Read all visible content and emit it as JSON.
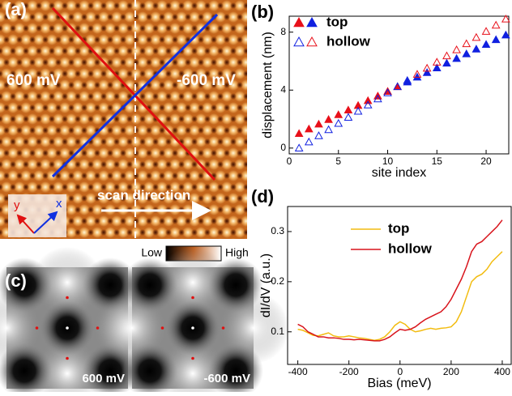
{
  "chart_data": [
    {
      "type": "scatter",
      "panel_label": "(b)",
      "x_label": "site index",
      "y_label": "displacement (nm)",
      "x": [
        1,
        2,
        3,
        4,
        5,
        6,
        7,
        8,
        9,
        10,
        11,
        12,
        13,
        14,
        15,
        16,
        17,
        18,
        19,
        20,
        21,
        22
      ],
      "series": [
        {
          "name": "top",
          "marker": "filled",
          "colors": [
            "#e8101a",
            "#e8101a",
            "#e8101a",
            "#e8101a",
            "#e8101a",
            "#e8101a",
            "#e8101a",
            "#e8101a",
            "#e8101a",
            "#e8101a",
            "#e8101a",
            "#1020e0",
            "#1020e0",
            "#1020e0",
            "#1020e0",
            "#1020e0",
            "#1020e0",
            "#1020e0",
            "#1020e0",
            "#1020e0",
            "#1020e0",
            "#1020e0"
          ],
          "values": [
            1.0,
            1.32,
            1.65,
            1.97,
            2.3,
            2.62,
            2.94,
            3.27,
            3.59,
            3.91,
            4.24,
            4.56,
            4.89,
            5.21,
            5.53,
            5.86,
            6.18,
            6.5,
            6.83,
            7.15,
            7.48,
            7.8
          ]
        },
        {
          "name": "hollow",
          "marker": "open",
          "colors": [
            "#1020e0",
            "#1020e0",
            "#1020e0",
            "#1020e0",
            "#1020e0",
            "#1020e0",
            "#1020e0",
            "#1020e0",
            "#1020e0",
            "#1020e0",
            "#1020e0",
            "#1020e0",
            "#e8101a",
            "#e8101a",
            "#e8101a",
            "#e8101a",
            "#e8101a",
            "#e8101a",
            "#e8101a",
            "#e8101a",
            "#e8101a",
            "#e8101a"
          ],
          "values": [
            0.0,
            0.42,
            0.85,
            1.27,
            1.7,
            2.12,
            2.54,
            2.97,
            3.39,
            3.81,
            4.24,
            4.66,
            5.09,
            5.51,
            5.93,
            6.36,
            6.78,
            7.2,
            7.63,
            8.05,
            8.48,
            8.9
          ]
        }
      ],
      "xlim": [
        0,
        22.3
      ],
      "xticks": [
        0,
        5,
        10,
        15,
        20
      ],
      "ylim": [
        -0.4,
        9.1
      ],
      "yticks": [
        0,
        4,
        8
      ]
    },
    {
      "type": "line",
      "panel_label": "(d)",
      "x_label": "Bias (meV)",
      "y_label": "dI/dV (a.u.)",
      "x": [
        -400,
        -380,
        -360,
        -340,
        -320,
        -300,
        -280,
        -260,
        -240,
        -220,
        -200,
        -180,
        -160,
        -140,
        -120,
        -100,
        -80,
        -60,
        -40,
        -20,
        0,
        20,
        40,
        60,
        80,
        100,
        120,
        140,
        160,
        180,
        200,
        220,
        240,
        260,
        280,
        300,
        320,
        340,
        360,
        380,
        400
      ],
      "series": [
        {
          "name": "top",
          "color": "#f2bc10",
          "values": [
            0.105,
            0.103,
            0.098,
            0.093,
            0.092,
            0.095,
            0.098,
            0.092,
            0.09,
            0.09,
            0.092,
            0.09,
            0.088,
            0.087,
            0.085,
            0.083,
            0.085,
            0.09,
            0.1,
            0.113,
            0.12,
            0.115,
            0.105,
            0.1,
            0.102,
            0.105,
            0.107,
            0.105,
            0.107,
            0.108,
            0.11,
            0.12,
            0.14,
            0.17,
            0.2,
            0.21,
            0.215,
            0.225,
            0.24,
            0.25,
            0.26
          ]
        },
        {
          "name": "hollow",
          "color": "#d8141c",
          "values": [
            0.115,
            0.11,
            0.1,
            0.095,
            0.09,
            0.09,
            0.088,
            0.088,
            0.087,
            0.085,
            0.085,
            0.084,
            0.085,
            0.084,
            0.083,
            0.082,
            0.082,
            0.085,
            0.09,
            0.098,
            0.105,
            0.103,
            0.105,
            0.11,
            0.118,
            0.125,
            0.13,
            0.135,
            0.14,
            0.15,
            0.165,
            0.185,
            0.205,
            0.23,
            0.26,
            0.275,
            0.28,
            0.29,
            0.3,
            0.31,
            0.323
          ]
        }
      ],
      "xlim": [
        -440,
        435
      ],
      "xticks": [
        -400,
        -200,
        0,
        200,
        400
      ],
      "ylim": [
        0.035,
        0.35
      ],
      "yticks": [
        0.1,
        0.2,
        0.3
      ]
    }
  ],
  "images": {
    "a": {
      "panel_label": "(a)",
      "left_bias": "600 mV",
      "right_bias": "-600 mV",
      "scan": "scan direction",
      "axis_x": "x",
      "axis_y": "y"
    },
    "c": {
      "panel_label": "(c)",
      "left_bias": "600 mV",
      "right_bias": "-600 mV",
      "low": "Low",
      "high": "High"
    }
  }
}
